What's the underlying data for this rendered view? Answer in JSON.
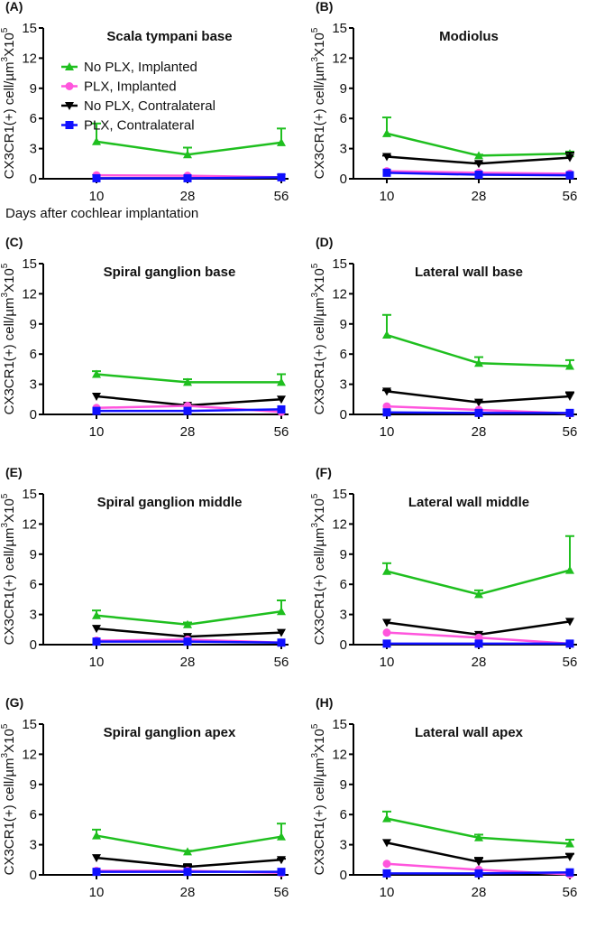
{
  "chart_data": {
    "type": "line",
    "shared": {
      "x": [
        10,
        28,
        56
      ],
      "x_tick_labels": [
        "10",
        "28",
        "56"
      ],
      "ylim": [
        0,
        15
      ],
      "y_ticks": [
        "0",
        "3",
        "6",
        "9",
        "12",
        "15"
      ],
      "ylabel_parts": [
        "CX3CR1(+) cell/µm",
        "3",
        "X10",
        "5"
      ],
      "xlabel": "Days after cochlear implantation",
      "legend": [
        {
          "name": "No PLX, Implanted",
          "color": "#1fbf1f",
          "marker": "triangle-up"
        },
        {
          "name": "PLX, Implanted",
          "color": "#ff55dd",
          "marker": "circle"
        },
        {
          "name": "No PLX, Contralateral",
          "color": "#000000",
          "marker": "triangle-down"
        },
        {
          "name": "PLX, Contralateral",
          "color": "#1010ff",
          "marker": "square"
        }
      ],
      "legend_placement": "upper-left of panel A"
    },
    "panels": [
      {
        "label": "(A)",
        "title": "Scala tympani base",
        "series": [
          {
            "values": [
              3.7,
              2.4,
              3.6
            ],
            "err": [
              1.8,
              0.7,
              1.4
            ]
          },
          {
            "values": [
              0.35,
              0.3,
              0.15
            ],
            "err": [
              0,
              0,
              0
            ]
          },
          {
            "values": [
              0.05,
              0.05,
              0.1
            ],
            "err": [
              0,
              0,
              0
            ]
          },
          {
            "values": [
              0.05,
              0.05,
              0.15
            ],
            "err": [
              0,
              0,
              0
            ]
          }
        ]
      },
      {
        "label": "(B)",
        "title": "Modiolus",
        "series": [
          {
            "values": [
              4.5,
              2.3,
              2.5
            ],
            "err": [
              1.6,
              0.1,
              0.2
            ]
          },
          {
            "values": [
              0.75,
              0.6,
              0.5
            ],
            "err": [
              0,
              0,
              0
            ]
          },
          {
            "values": [
              2.2,
              1.5,
              2.1
            ],
            "err": [
              0.1,
              0.1,
              0.5
            ]
          },
          {
            "values": [
              0.6,
              0.4,
              0.35
            ],
            "err": [
              0,
              0,
              0
            ]
          }
        ]
      },
      {
        "label": "(C)",
        "title": "Spiral ganglion base",
        "series": [
          {
            "values": [
              4.0,
              3.2,
              3.2
            ],
            "err": [
              0.3,
              0.3,
              0.8
            ]
          },
          {
            "values": [
              0.65,
              0.85,
              0.25
            ],
            "err": [
              0,
              0,
              0
            ]
          },
          {
            "values": [
              1.8,
              0.9,
              1.5
            ],
            "err": [
              0,
              0.1,
              0
            ]
          },
          {
            "values": [
              0.35,
              0.35,
              0.5
            ],
            "err": [
              0,
              0,
              0
            ]
          }
        ]
      },
      {
        "label": "(D)",
        "title": "Lateral wall base",
        "series": [
          {
            "values": [
              7.9,
              5.1,
              4.8
            ],
            "err": [
              2.0,
              0.6,
              0.6
            ]
          },
          {
            "values": [
              0.8,
              0.45,
              0.1
            ],
            "err": [
              0,
              0,
              0
            ]
          },
          {
            "values": [
              2.3,
              1.2,
              1.8
            ],
            "err": [
              0.1,
              0.1,
              0.4
            ]
          },
          {
            "values": [
              0.2,
              0.15,
              0.15
            ],
            "err": [
              0,
              0,
              0
            ]
          }
        ]
      },
      {
        "label": "(E)",
        "title": "Spiral ganglion middle",
        "series": [
          {
            "values": [
              2.9,
              2.0,
              3.3
            ],
            "err": [
              0.5,
              0.2,
              1.1
            ]
          },
          {
            "values": [
              0.4,
              0.5,
              0.2
            ],
            "err": [
              0,
              0,
              0
            ]
          },
          {
            "values": [
              1.6,
              0.8,
              1.2
            ],
            "err": [
              0,
              0,
              0
            ]
          },
          {
            "values": [
              0.3,
              0.3,
              0.2
            ],
            "err": [
              0,
              0,
              0
            ]
          }
        ]
      },
      {
        "label": "(F)",
        "title": "Lateral wall middle",
        "series": [
          {
            "values": [
              7.3,
              5.0,
              7.4
            ],
            "err": [
              0.8,
              0.4,
              3.4
            ]
          },
          {
            "values": [
              1.2,
              0.7,
              0.1
            ],
            "err": [
              0,
              0,
              0
            ]
          },
          {
            "values": [
              2.2,
              1.0,
              2.3
            ],
            "err": [
              0,
              0,
              0
            ]
          },
          {
            "values": [
              0.1,
              0.1,
              0.1
            ],
            "err": [
              0,
              0,
              0
            ]
          }
        ]
      },
      {
        "label": "(G)",
        "title": "Spiral ganglion apex",
        "series": [
          {
            "values": [
              3.9,
              2.3,
              3.8
            ],
            "err": [
              0.6,
              0.1,
              1.3
            ]
          },
          {
            "values": [
              0.4,
              0.4,
              0.2
            ],
            "err": [
              0,
              0,
              0
            ]
          },
          {
            "values": [
              1.7,
              0.8,
              1.5
            ],
            "err": [
              0,
              0.2,
              0.1
            ]
          },
          {
            "values": [
              0.3,
              0.3,
              0.3
            ],
            "err": [
              0,
              0,
              0
            ]
          }
        ]
      },
      {
        "label": "(H)",
        "title": "Lateral wall apex",
        "series": [
          {
            "values": [
              5.6,
              3.7,
              3.1
            ],
            "err": [
              0.7,
              0.3,
              0.4
            ]
          },
          {
            "values": [
              1.1,
              0.5,
              0.05
            ],
            "err": [
              0,
              0,
              0
            ]
          },
          {
            "values": [
              3.2,
              1.3,
              1.8
            ],
            "err": [
              0,
              0.4,
              0.3
            ]
          },
          {
            "values": [
              0.15,
              0.15,
              0.25
            ],
            "err": [
              0,
              0,
              0
            ]
          }
        ]
      }
    ]
  }
}
